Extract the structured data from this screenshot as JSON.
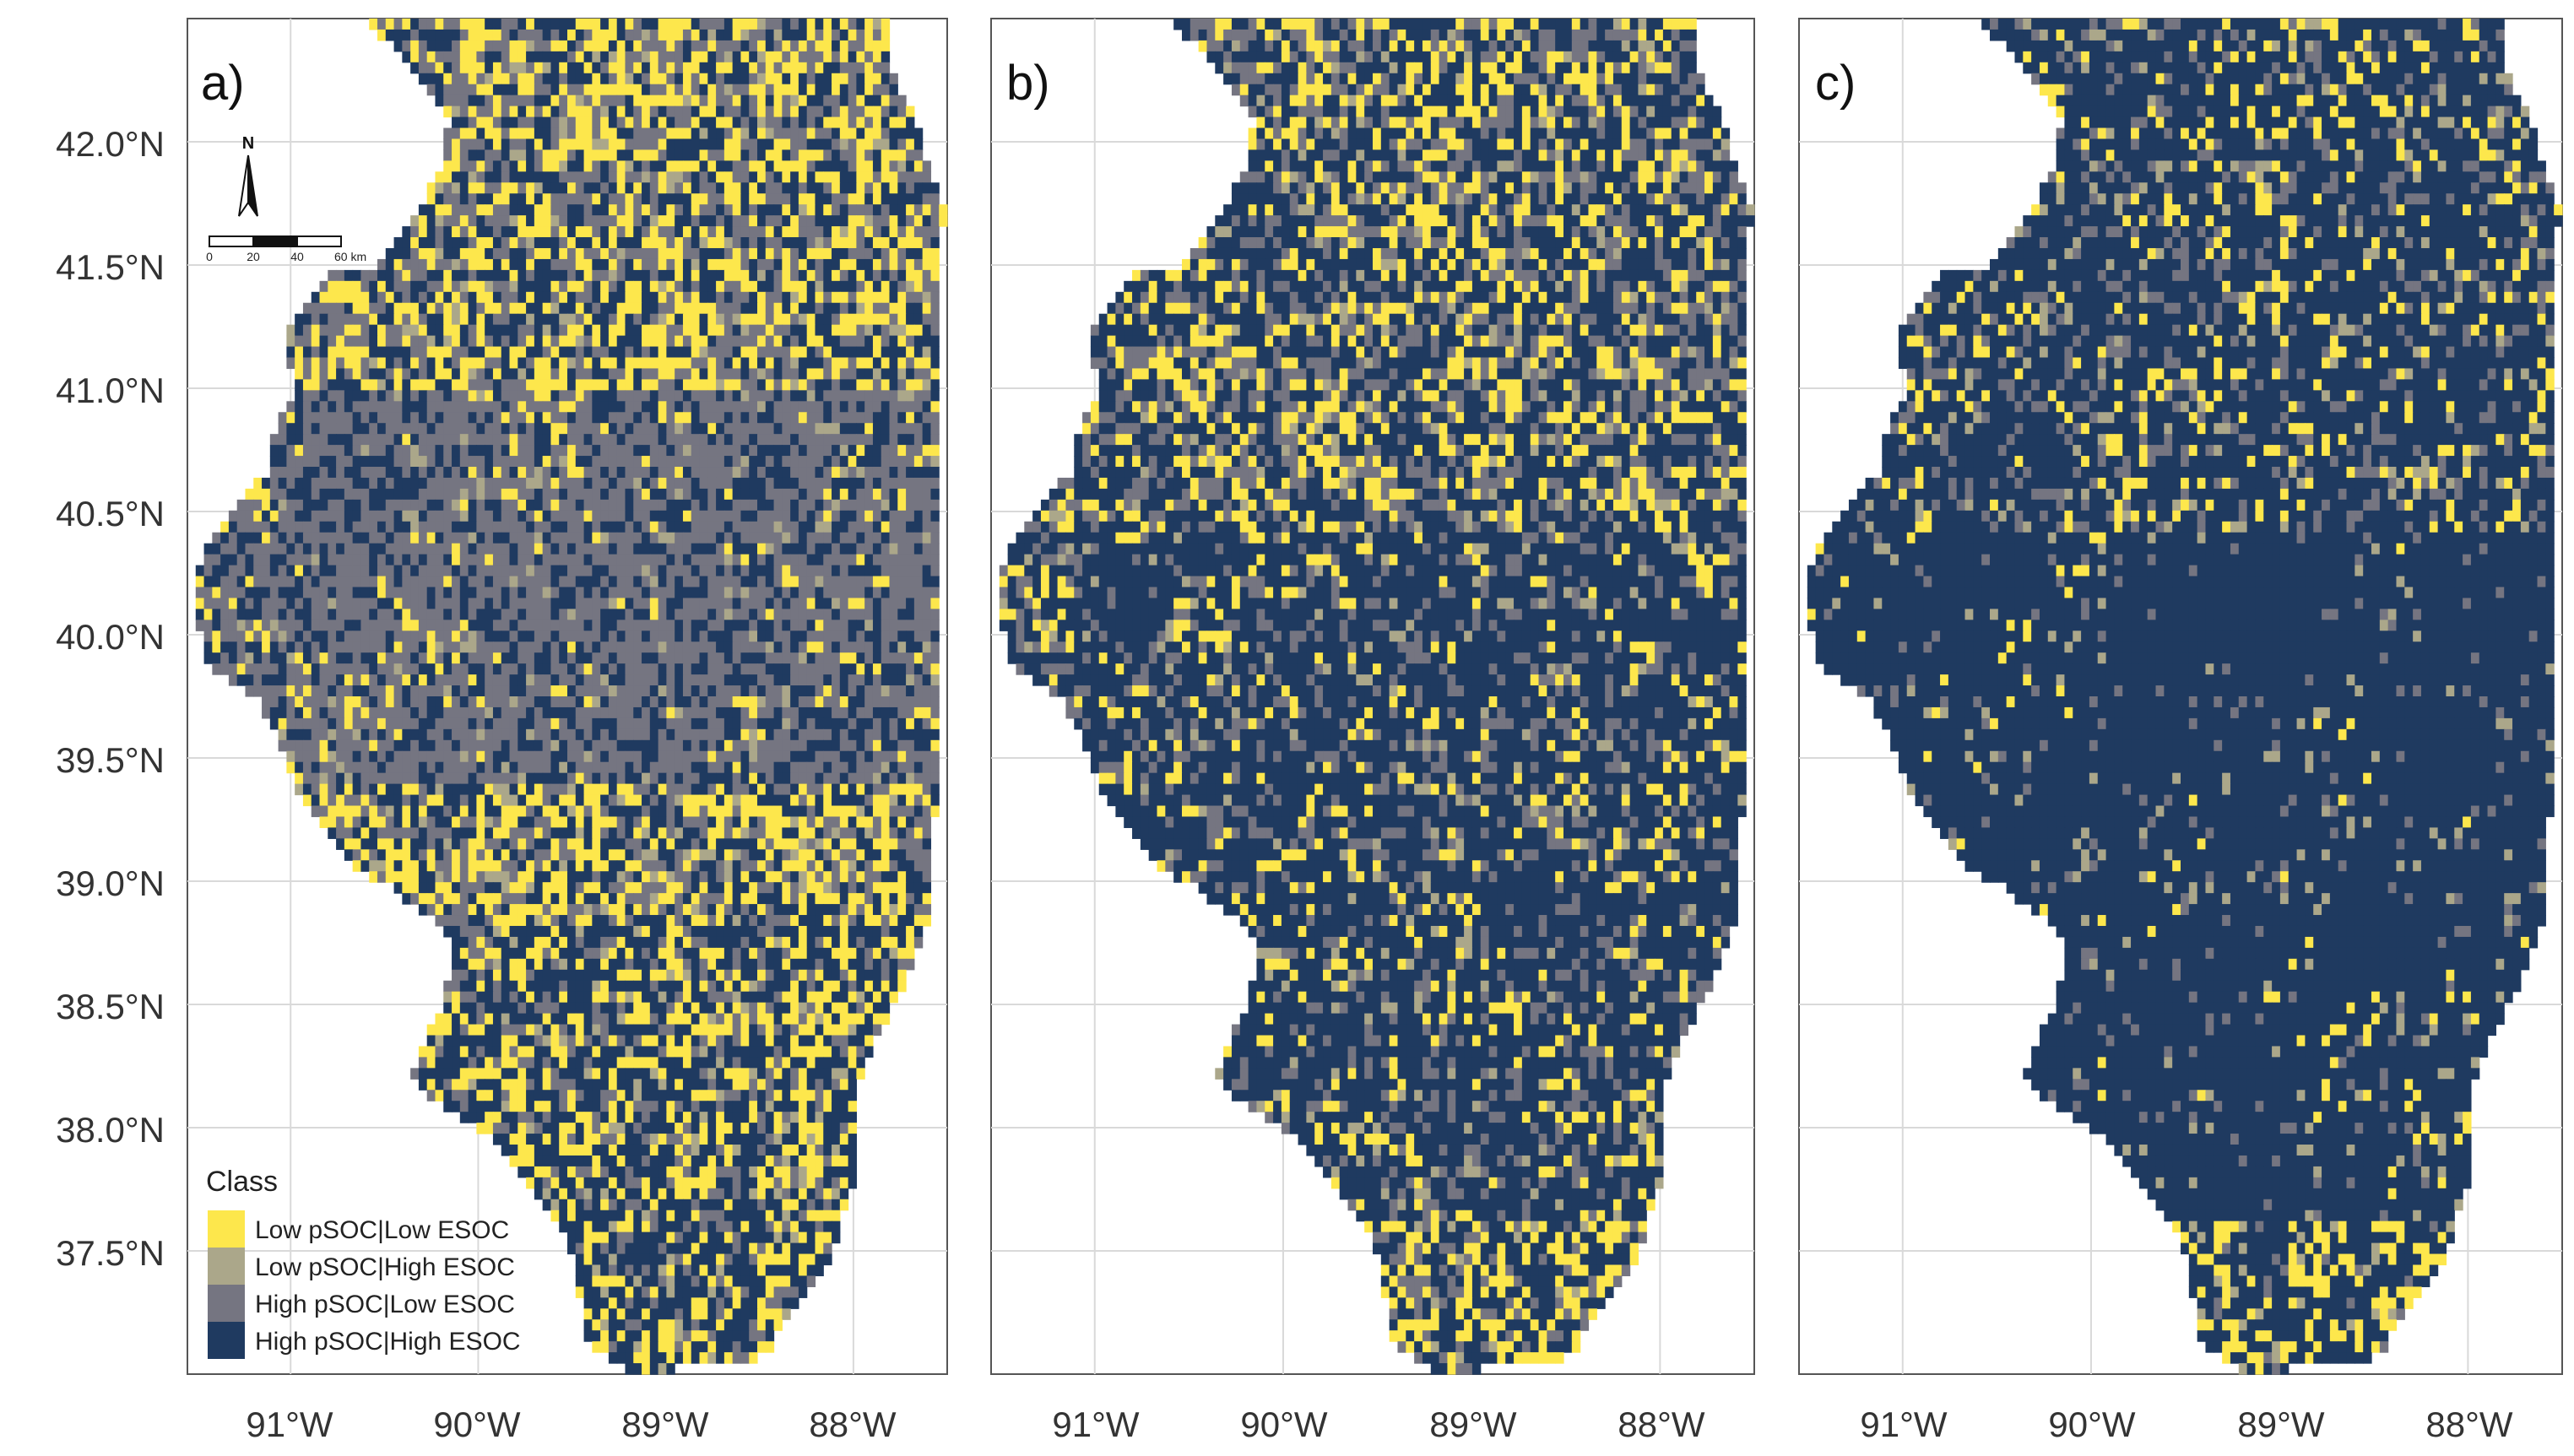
{
  "panels": [
    {
      "label": "a)",
      "high_share": 0.3,
      "gray_share": 0.3
    },
    {
      "label": "b)",
      "high_share": 0.66,
      "gray_share": 0.18
    },
    {
      "label": "c)",
      "high_share": 0.9,
      "gray_share": 0.05
    }
  ],
  "axes": {
    "lat_ticks": [
      "42.0°N",
      "41.5°N",
      "41.0°N",
      "40.5°N",
      "40.0°N",
      "39.5°N",
      "39.0°N",
      "38.5°N",
      "38.0°N",
      "37.5°N"
    ],
    "lat_values": [
      42.0,
      41.5,
      41.0,
      40.5,
      40.0,
      39.5,
      39.0,
      38.5,
      38.0,
      37.5
    ],
    "lon_ticks": [
      "91°W",
      "90°W",
      "89°W",
      "88°W"
    ],
    "lon_values": [
      -91,
      -90,
      -89,
      -88
    ],
    "lat_range": [
      37.0,
      42.5
    ],
    "lon_range": [
      -91.55,
      -87.5
    ]
  },
  "legend": {
    "title": "Class",
    "items": [
      {
        "label": "Low pSOC|Low ESOC",
        "color": "#FDE74C"
      },
      {
        "label": "Low pSOC|High ESOC",
        "color": "#ABA78A"
      },
      {
        "label": "High pSOC|Low ESOC",
        "color": "#757581"
      },
      {
        "label": "High pSOC|High ESOC",
        "color": "#1F3A60"
      }
    ]
  },
  "scale_bar": {
    "north": "N",
    "ticks": [
      "0",
      "20",
      "40",
      "60 km"
    ]
  }
}
